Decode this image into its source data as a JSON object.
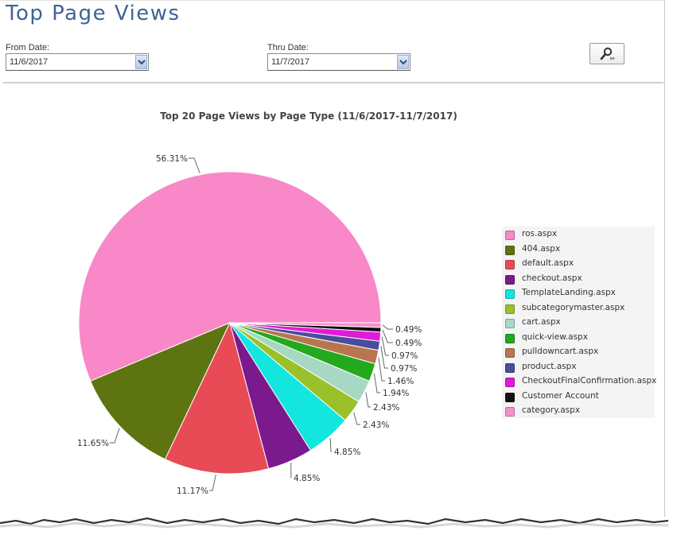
{
  "page": {
    "title": "Top Page Views"
  },
  "filters": {
    "from": {
      "label": "From Date:",
      "value": "11/6/2017"
    },
    "thru": {
      "label": "Thru Date:",
      "value": "11/7/2017"
    }
  },
  "icons": {
    "search": "search-icon",
    "dropdown": "chevron-down-icon"
  },
  "chart_data": {
    "type": "pie",
    "title": "Top 20 Page Views by Page Type (11/6/2017-11/7/2017)",
    "legend_position": "right",
    "slices": [
      {
        "name": "ros.aspx",
        "value": 56.31,
        "label": "56.31%",
        "color": "#f888c8"
      },
      {
        "name": "404.aspx",
        "value": 11.65,
        "label": "11.65%",
        "color": "#5e7410"
      },
      {
        "name": "default.aspx",
        "value": 11.17,
        "label": "11.17%",
        "color": "#e84b55"
      },
      {
        "name": "checkout.aspx",
        "value": 4.85,
        "label": "4.85%",
        "color": "#7a1a8c"
      },
      {
        "name": "TemplateLanding.aspx",
        "value": 4.85,
        "label": "4.85%",
        "color": "#12e6df"
      },
      {
        "name": "subcategorymaster.aspx",
        "value": 2.43,
        "label": "2.43%",
        "color": "#9ac02a"
      },
      {
        "name": "cart.aspx",
        "value": 2.43,
        "label": "2.43%",
        "color": "#a6d8c4"
      },
      {
        "name": "quick-view.aspx",
        "value": 1.94,
        "label": "1.94%",
        "color": "#24a81e"
      },
      {
        "name": "pulldowncart.aspx",
        "value": 1.46,
        "label": "1.46%",
        "color": "#b87650"
      },
      {
        "name": "product.aspx",
        "value": 0.97,
        "label": "0.97%",
        "color": "#4a4d9a"
      },
      {
        "name": "CheckoutFinalConfirmation.aspx",
        "value": 0.97,
        "label": "0.97%",
        "color": "#e01ad8"
      },
      {
        "name": "Customer Account",
        "value": 0.49,
        "label": "0.49%",
        "color": "#111111"
      },
      {
        "name": "category.aspx",
        "value": 0.49,
        "label": "0.49%",
        "color": "#f590cc"
      }
    ]
  }
}
